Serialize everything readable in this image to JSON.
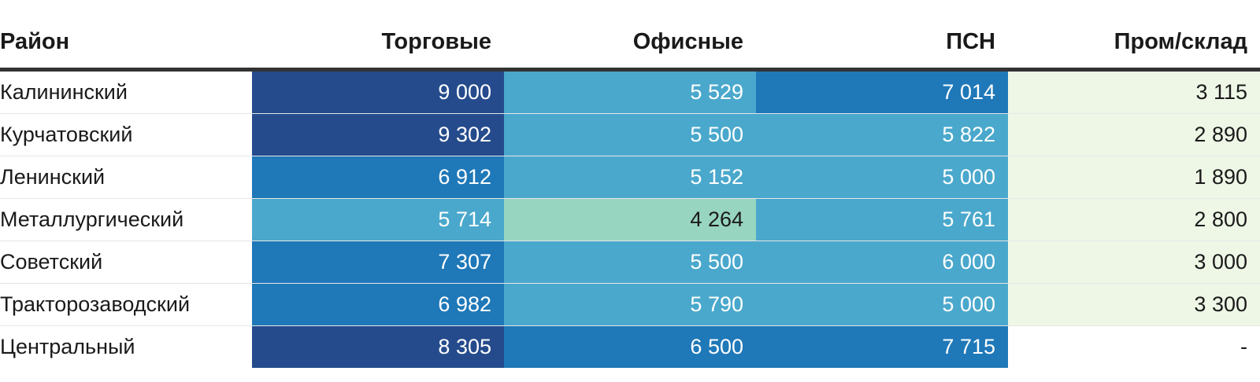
{
  "chart_data": {
    "type": "table",
    "columns": [
      "Район",
      "Торговые",
      "Офисные",
      "ПСН",
      "Пром/склад"
    ],
    "rows": [
      {
        "district": "Калининский",
        "values": [
          "9 000",
          "5 529",
          "7 014",
          "3 115"
        ],
        "numeric": [
          9000,
          5529,
          7014,
          3115
        ]
      },
      {
        "district": "Курчатовский",
        "values": [
          "9 302",
          "5 500",
          "5 822",
          "2 890"
        ],
        "numeric": [
          9302,
          5500,
          5822,
          2890
        ]
      },
      {
        "district": "Ленинский",
        "values": [
          "6 912",
          "5 152",
          "5 000",
          "1 890"
        ],
        "numeric": [
          6912,
          5152,
          5000,
          1890
        ]
      },
      {
        "district": "Металлургический",
        "values": [
          "5 714",
          "4 264",
          "5 761",
          "2 800"
        ],
        "numeric": [
          5714,
          4264,
          5761,
          2800
        ]
      },
      {
        "district": "Советский",
        "values": [
          "7 307",
          "5 500",
          "6 000",
          "3 000"
        ],
        "numeric": [
          7307,
          5500,
          6000,
          3000
        ]
      },
      {
        "district": "Тракторозаводский",
        "values": [
          "6 982",
          "5 790",
          "5 000",
          "3 300"
        ],
        "numeric": [
          6982,
          5790,
          5000,
          3300
        ]
      },
      {
        "district": "Центральный",
        "values": [
          "8 305",
          "6 500",
          "7 715",
          "-"
        ],
        "numeric": [
          8305,
          6500,
          7715,
          null
        ]
      }
    ],
    "color_scale": [
      {
        "min": 8000,
        "color": "#254b8c",
        "text": "#ffffff"
      },
      {
        "min": 6500,
        "color": "#1f78b8",
        "text": "#ffffff"
      },
      {
        "min": 4500,
        "color": "#4aa8cc",
        "text": "#ffffff"
      },
      {
        "min": 3500,
        "color": "#97d5c0",
        "text": "#1a1a1a"
      },
      {
        "min": 0,
        "color": "#eef7e6",
        "text": "#1a1a1a"
      }
    ],
    "missing_color": "#ffffff"
  }
}
